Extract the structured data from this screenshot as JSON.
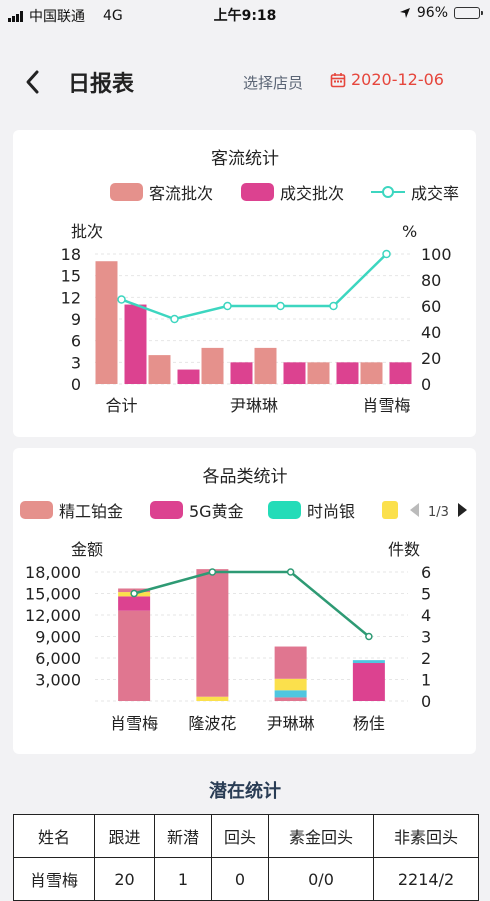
{
  "status": {
    "carrier": "中国联通",
    "network": "4G",
    "time": "上午9:18",
    "battery": "96%",
    "battery_level": 0.96
  },
  "header": {
    "title": "日报表",
    "pick_staff": "选择店员",
    "date": "2020-12-06"
  },
  "flow_chart": {
    "title": "客流统计",
    "legend": [
      "客流批次",
      "成交批次",
      "成交率"
    ],
    "left_unit": "批次",
    "right_unit": "%",
    "left_ticks": [
      "0",
      "3",
      "6",
      "9",
      "12",
      "15",
      "18"
    ],
    "right_ticks": [
      "0",
      "20",
      "40",
      "60",
      "80",
      "100"
    ],
    "x_labels": [
      "合计",
      "尹琳琳",
      "肖雪梅"
    ]
  },
  "category_chart": {
    "title": "各品类统计",
    "legend": [
      "精工铂金",
      "5G黄金",
      "时尚银"
    ],
    "page": "1/3",
    "left_unit": "金额",
    "right_unit": "件数",
    "left_ticks": [
      "3,000",
      "6,000",
      "9,000",
      "12,000",
      "15,000",
      "18,000"
    ],
    "right_ticks": [
      "0",
      "1",
      "2",
      "3",
      "4",
      "5",
      "6"
    ],
    "x_labels": [
      "肖雪梅",
      "隆波花",
      "尹琳琳",
      "杨佳"
    ]
  },
  "chart_data": [
    {
      "type": "bar",
      "title": "客流统计",
      "categories": [
        "合计",
        "",
        "",
        "尹琳琳",
        "",
        "肖雪梅"
      ],
      "series": [
        {
          "name": "客流批次",
          "type": "bar",
          "values": [
            17,
            4,
            5,
            5,
            3,
            3
          ],
          "color": "#e5918c"
        },
        {
          "name": "成交批次",
          "type": "bar",
          "values": [
            11,
            2,
            3,
            3,
            3,
            3
          ],
          "color": "#dc4290"
        },
        {
          "name": "成交率",
          "type": "line",
          "axis": "right",
          "values": [
            65,
            50,
            60,
            60,
            60,
            100
          ],
          "color": "#3dd6c0"
        }
      ],
      "ylabel": "批次",
      "ylim": [
        0,
        18
      ],
      "y2label": "%",
      "y2lim": [
        0,
        100
      ],
      "legend": "top-right",
      "grid": true
    },
    {
      "type": "bar",
      "title": "各品类统计",
      "categories": [
        "肖雪梅",
        "隆波花",
        "尹琳琳",
        "杨佳"
      ],
      "stacked_series": [
        {
          "name": "精工铂金",
          "values": [
            12600,
            0,
            500,
            0
          ],
          "color": "#e07690"
        },
        {
          "name": "5G黄金",
          "values": [
            2000,
            0,
            0,
            5300
          ],
          "color": "#dc4290"
        },
        {
          "name": "时尚银",
          "values": [
            0,
            0,
            1000,
            400
          ],
          "color": "#4fc6e0"
        },
        {
          "name": "",
          "values": [
            600,
            600,
            1600,
            0
          ],
          "color": "#fbe04c"
        },
        {
          "name": "",
          "values": [
            500,
            17800,
            4500,
            0
          ],
          "color": "#e07690"
        }
      ],
      "line_series": {
        "name": "件数",
        "axis": "right",
        "values": [
          5,
          6,
          6,
          3
        ],
        "color": "#2e9a74"
      },
      "ylabel": "金额",
      "ylim": [
        0,
        18000
      ],
      "y2label": "件数",
      "y2lim": [
        0,
        6
      ],
      "legend": "top",
      "grid": true
    }
  ],
  "potential": {
    "title": "潜在统计",
    "columns": [
      "姓名",
      "跟进",
      "新潜",
      "回头",
      "素金回头",
      "非素回头"
    ],
    "rows": [
      [
        "肖雪梅",
        "20",
        "1",
        "0",
        "0/0",
        "2214/2"
      ]
    ]
  },
  "colors": {
    "accent": "#e6463c",
    "teal": "#3dd6c0",
    "pink": "#dc4290",
    "salmon": "#e5918c"
  }
}
